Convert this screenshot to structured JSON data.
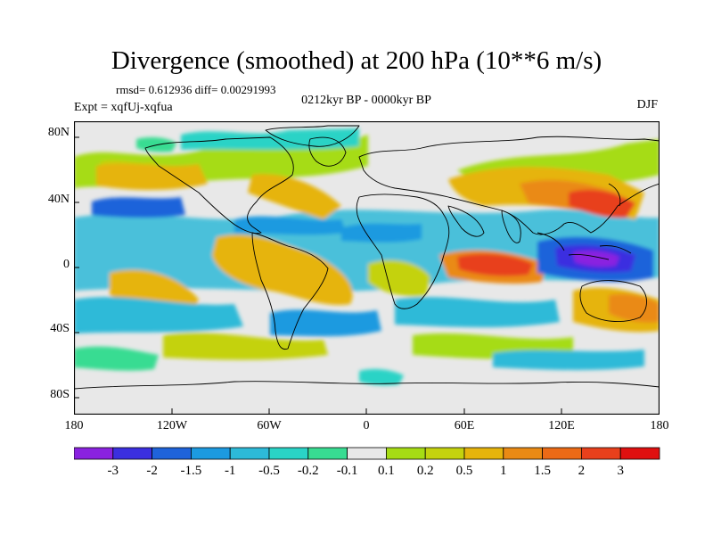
{
  "title": "Divergence (smoothed) at 200 hPa (10**6 m/s)",
  "stats": "rmsd= 0.612936 diff= 0.00291993",
  "experiment": "Expt = xqfUj-xqfua",
  "period": "0212kyr BP - 0000kyr BP",
  "season": "DJF",
  "lat_labels": [
    "80N",
    "40N",
    "0",
    "40S",
    "80S"
  ],
  "lon_labels": [
    "180",
    "120W",
    "60W",
    "0",
    "60E",
    "120E",
    "180"
  ],
  "colorbar": {
    "labels": [
      "-3",
      "-2",
      "-1.5",
      "-1",
      "-0.5",
      "-0.2",
      "-0.1",
      "0.1",
      "0.2",
      "0.5",
      "1",
      "1.5",
      "2",
      "3"
    ],
    "colors": [
      "#8a22e0",
      "#3b2fe0",
      "#1f63da",
      "#1c9ae0",
      "#2dbad8",
      "#2ad3c6",
      "#38dc92",
      "#e8e8e8",
      "#a6dc14",
      "#c4d20e",
      "#e6b40c",
      "#ea8a14",
      "#ec6a16",
      "#e8401c",
      "#e01010"
    ]
  },
  "map_colors": {
    "ocean_neutral": "#e8e8e8",
    "coastline": "#000000",
    "frame": "#000000"
  }
}
